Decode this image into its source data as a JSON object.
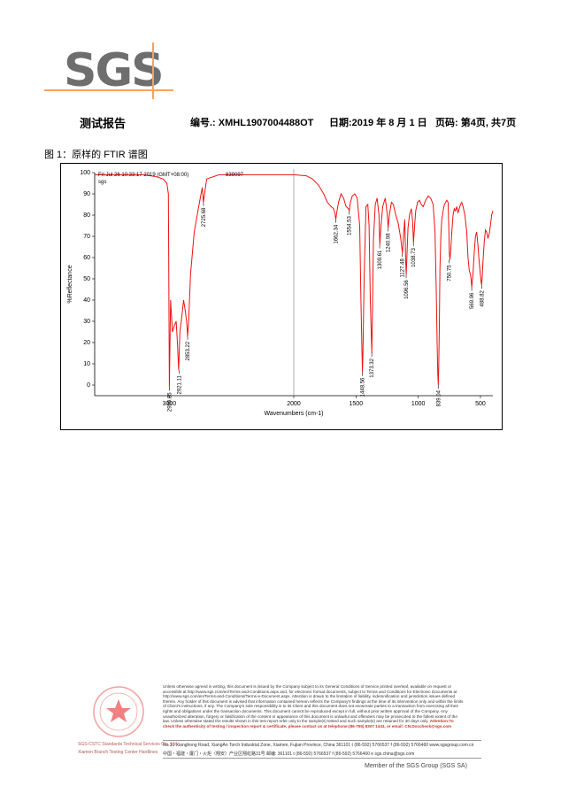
{
  "logo": {
    "text": "SGS"
  },
  "header": {
    "title": "测试报告",
    "report_no": "编号.: XMHL1907004488OT",
    "date": "日期:2019 年 8 月 1 日",
    "page": "页码: 第4页, 共7页"
  },
  "caption": "图 1：原样的 FTIR 谱图",
  "chart_data": {
    "type": "line",
    "title": "",
    "timestamp": "Fri Jul 26 10:33:17 2019 (GMT+08:00)",
    "sample_id": "839097",
    "series_label": "sgs",
    "xlabel": "Wavenumbers (cm-1)",
    "ylabel": "%Reflectance",
    "xlim": [
      3600,
      400
    ],
    "ylim": [
      -5,
      100
    ],
    "x_ticks": [
      3000,
      2000,
      1500,
      1000,
      500
    ],
    "y_ticks": [
      0,
      10,
      20,
      30,
      40,
      50,
      60,
      70,
      80,
      90,
      100
    ],
    "peaks": [
      {
        "x": 2999.85,
        "y": -1
      },
      {
        "x": 2921.11,
        "y": 7
      },
      {
        "x": 2853.22,
        "y": 23
      },
      {
        "x": 2725.68,
        "y": 86
      },
      {
        "x": 1662.34,
        "y": 78
      },
      {
        "x": 1554.53,
        "y": 82
      },
      {
        "x": 1448.56,
        "y": 6
      },
      {
        "x": 1373.32,
        "y": 15
      },
      {
        "x": 1309.61,
        "y": 66
      },
      {
        "x": 1240.98,
        "y": 74
      },
      {
        "x": 1127.48,
        "y": 62
      },
      {
        "x": 1096.56,
        "y": 52
      },
      {
        "x": 1038.73,
        "y": 67
      },
      {
        "x": 839.04,
        "y": 0
      },
      {
        "x": 750.75,
        "y": 59
      },
      {
        "x": 569.96,
        "y": 46
      },
      {
        "x": 488.82,
        "y": 47
      }
    ],
    "spectrum": {
      "x": [
        3600,
        3500,
        3400,
        3300,
        3200,
        3150,
        3100,
        3050,
        3020,
        3008,
        3000,
        2990,
        2975,
        2960,
        2945,
        2935,
        2925,
        2915,
        2900,
        2885,
        2870,
        2860,
        2853,
        2845,
        2830,
        2800,
        2770,
        2745,
        2735,
        2726,
        2715,
        2700,
        2600,
        2400,
        2200,
        2000,
        1900,
        1850,
        1800,
        1760,
        1730,
        1700,
        1680,
        1670,
        1662,
        1655,
        1640,
        1620,
        1600,
        1580,
        1560,
        1554,
        1545,
        1530,
        1510,
        1490,
        1470,
        1460,
        1452,
        1448,
        1444,
        1435,
        1420,
        1405,
        1395,
        1385,
        1378,
        1373,
        1368,
        1360,
        1345,
        1330,
        1315,
        1309,
        1300,
        1285,
        1265,
        1250,
        1241,
        1232,
        1215,
        1200,
        1180,
        1160,
        1140,
        1127,
        1118,
        1108,
        1101,
        1096,
        1090,
        1082,
        1070,
        1055,
        1045,
        1038,
        1030,
        1020,
        1005,
        990,
        975,
        960,
        940,
        920,
        900,
        880,
        865,
        855,
        848,
        843,
        839,
        835,
        830,
        825,
        818,
        810,
        800,
        790,
        780,
        770,
        760,
        755,
        750,
        745,
        738,
        730,
        720,
        710,
        700,
        690,
        680,
        670,
        660,
        650,
        640,
        625,
        610,
        600,
        590,
        580,
        575,
        570,
        565,
        560,
        550,
        540,
        530,
        520,
        510,
        500,
        495,
        490,
        485,
        480,
        470,
        460,
        450,
        440,
        430,
        420,
        410,
        400
      ],
      "y": [
        99,
        99,
        99,
        99,
        99,
        98.5,
        98,
        97,
        95,
        90,
        -1,
        40,
        25,
        28,
        30,
        20,
        7,
        25,
        32,
        40,
        34,
        29,
        23,
        30,
        52,
        72,
        82,
        90,
        93,
        86,
        91,
        97,
        99,
        99,
        99,
        99,
        98.5,
        97,
        94,
        90,
        86,
        84,
        83,
        81,
        78,
        81,
        86,
        90,
        88,
        84,
        83,
        82,
        86,
        89,
        90,
        88,
        75,
        40,
        15,
        6,
        16,
        50,
        84,
        85,
        75,
        40,
        25,
        15,
        33,
        68,
        85,
        88,
        80,
        66,
        74,
        84,
        88,
        81,
        74,
        80,
        86,
        85,
        80,
        76,
        69,
        62,
        70,
        78,
        60,
        52,
        62,
        74,
        80,
        83,
        77,
        67,
        74,
        82,
        86,
        87,
        85,
        84,
        87,
        89,
        88,
        85,
        72,
        45,
        20,
        6,
        0,
        8,
        28,
        55,
        70,
        78,
        82,
        85,
        86,
        87,
        86,
        76,
        62,
        59,
        64,
        72,
        80,
        83,
        82,
        84,
        81,
        83,
        85,
        86,
        84,
        80,
        72,
        60,
        54,
        52,
        50,
        46,
        49,
        52,
        62,
        70,
        72,
        66,
        58,
        52,
        49,
        47,
        51,
        58,
        67,
        73,
        72,
        69,
        71,
        75,
        80,
        82
      ]
    }
  },
  "footer": {
    "disclaimer": "Unless otherwise agreed in writing, this document is issued by the Company subject to its General Conditions of Service printed overleaf, available on request or accessible at http://www.sgs.com/en/Terms-and-Conditions.aspx and, for electronic format documents, subject to Terms and Conditions for Electronic Documents at http://www.sgs.com/en/Terms-and-Conditions/Terms-e-Document.aspx. Attention is drawn to the limitation of liability, indemnification and jurisdiction issues defined therein. Any holder of this document is advised that information contained hereon reflects the Company's findings at the time of its intervention only and within the limits of Client's instructions, if any. The Company's sole responsibility is to its Client and this document does not exonerate parties to a transaction from exercising all their rights and obligations under the transaction documents. This document cannot be reproduced except in full, without prior written approval of the Company. Any unauthorized alteration, forgery or falsification of the content or appearance of this document is unlawful and offenders may be prosecuted to the fullest extent of the law. Unless otherwise stated the results shown in this test report refer only to the sample(s) tested and such sample(s) are retained for 30 days only.",
    "attention": "Attention:To check the authenticity of testing / inspection report & certificate, please contact us at telephone:(86-755) 8307 1443, or email: CN.Doccheck@sgs.com",
    "address_en": "No.31 Xianghong Road, XiangAn Torch Industrial Zone, Xiamen, Fujian Province, China 361101   t (86-592) 5766537   f (86-592) 5766460   www.sgsgroup.com.cn",
    "address_cn": "中国・福建・厦门・火炬（翔安）产业区翔虹路31号   邮编: 361101   t (86-592) 5766537   f (86-592) 5766460   e sgs.china@sgs.com",
    "seal_caption_1": "SGS-CSTC Standards Technical Services Co., Ltd.",
    "seal_caption_2": "Xiamen Branch Testing Center Hardlines",
    "member": "Member of the SGS Group (SGS SA)"
  }
}
